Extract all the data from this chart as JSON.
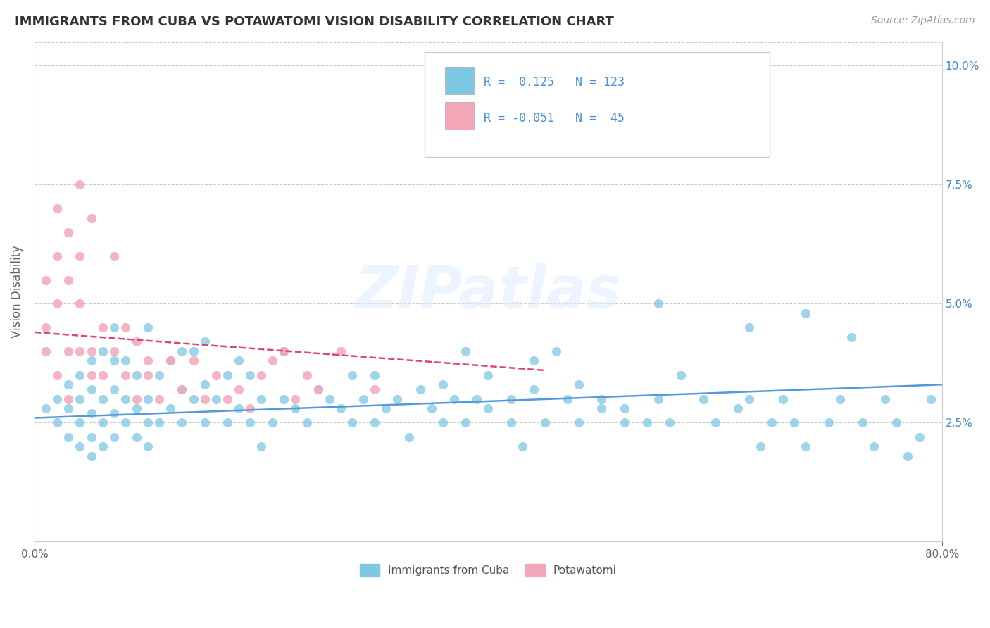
{
  "title": "IMMIGRANTS FROM CUBA VS POTAWATOMI VISION DISABILITY CORRELATION CHART",
  "source": "Source: ZipAtlas.com",
  "ylabel": "Vision Disability",
  "xlim": [
    0.0,
    0.8
  ],
  "ylim": [
    0.0,
    0.105
  ],
  "ytick_vals": [
    0.025,
    0.05,
    0.075,
    0.1
  ],
  "grid_color": "#cccccc",
  "background_color": "#ffffff",
  "watermark": "ZIPatlas",
  "blue_color": "#7ec8e3",
  "pink_color": "#f4a7b9",
  "blue_line_color": "#5599dd",
  "pink_line_color": "#dd4477",
  "title_color": "#333333",
  "axis_color": "#666666",
  "legend_text_color": "#4a90d9",
  "r1": 0.125,
  "n1": 123,
  "r2": -0.051,
  "n2": 45,
  "blue_scatter_x": [
    0.01,
    0.02,
    0.02,
    0.03,
    0.03,
    0.03,
    0.04,
    0.04,
    0.04,
    0.04,
    0.05,
    0.05,
    0.05,
    0.05,
    0.05,
    0.06,
    0.06,
    0.06,
    0.06,
    0.07,
    0.07,
    0.07,
    0.07,
    0.07,
    0.08,
    0.08,
    0.08,
    0.09,
    0.09,
    0.09,
    0.1,
    0.1,
    0.1,
    0.1,
    0.11,
    0.11,
    0.12,
    0.12,
    0.13,
    0.13,
    0.13,
    0.14,
    0.14,
    0.15,
    0.15,
    0.15,
    0.16,
    0.17,
    0.17,
    0.18,
    0.18,
    0.19,
    0.19,
    0.2,
    0.2,
    0.21,
    0.22,
    0.22,
    0.23,
    0.24,
    0.25,
    0.26,
    0.27,
    0.28,
    0.28,
    0.29,
    0.3,
    0.3,
    0.31,
    0.32,
    0.33,
    0.34,
    0.35,
    0.36,
    0.37,
    0.38,
    0.39,
    0.4,
    0.42,
    0.43,
    0.44,
    0.45,
    0.47,
    0.48,
    0.5,
    0.52,
    0.54,
    0.55,
    0.56,
    0.57,
    0.59,
    0.6,
    0.62,
    0.63,
    0.64,
    0.65,
    0.66,
    0.67,
    0.68,
    0.7,
    0.71,
    0.73,
    0.74,
    0.75,
    0.76,
    0.77,
    0.78,
    0.79,
    0.55,
    0.63,
    0.68,
    0.72,
    0.36,
    0.38,
    0.4,
    0.42,
    0.44,
    0.46,
    0.48,
    0.5,
    0.52
  ],
  "blue_scatter_y": [
    0.028,
    0.025,
    0.03,
    0.022,
    0.028,
    0.033,
    0.02,
    0.025,
    0.03,
    0.035,
    0.018,
    0.022,
    0.027,
    0.032,
    0.038,
    0.02,
    0.025,
    0.03,
    0.04,
    0.022,
    0.027,
    0.032,
    0.038,
    0.045,
    0.025,
    0.03,
    0.038,
    0.022,
    0.028,
    0.035,
    0.02,
    0.025,
    0.03,
    0.045,
    0.025,
    0.035,
    0.028,
    0.038,
    0.025,
    0.032,
    0.04,
    0.03,
    0.04,
    0.025,
    0.033,
    0.042,
    0.03,
    0.025,
    0.035,
    0.028,
    0.038,
    0.025,
    0.035,
    0.02,
    0.03,
    0.025,
    0.03,
    0.04,
    0.028,
    0.025,
    0.032,
    0.03,
    0.028,
    0.025,
    0.035,
    0.03,
    0.025,
    0.035,
    0.028,
    0.03,
    0.022,
    0.032,
    0.028,
    0.025,
    0.03,
    0.025,
    0.03,
    0.028,
    0.025,
    0.02,
    0.032,
    0.025,
    0.03,
    0.025,
    0.03,
    0.028,
    0.025,
    0.03,
    0.025,
    0.035,
    0.03,
    0.025,
    0.028,
    0.03,
    0.02,
    0.025,
    0.03,
    0.025,
    0.02,
    0.025,
    0.03,
    0.025,
    0.02,
    0.03,
    0.025,
    0.018,
    0.022,
    0.03,
    0.05,
    0.045,
    0.048,
    0.043,
    0.033,
    0.04,
    0.035,
    0.03,
    0.038,
    0.04,
    0.033,
    0.028,
    0.025
  ],
  "pink_scatter_x": [
    0.01,
    0.01,
    0.01,
    0.02,
    0.02,
    0.02,
    0.02,
    0.03,
    0.03,
    0.03,
    0.03,
    0.04,
    0.04,
    0.04,
    0.04,
    0.05,
    0.05,
    0.05,
    0.06,
    0.06,
    0.07,
    0.07,
    0.08,
    0.08,
    0.09,
    0.09,
    0.1,
    0.1,
    0.11,
    0.12,
    0.13,
    0.14,
    0.15,
    0.16,
    0.17,
    0.18,
    0.19,
    0.2,
    0.21,
    0.22,
    0.23,
    0.24,
    0.25,
    0.27,
    0.3
  ],
  "pink_scatter_y": [
    0.045,
    0.055,
    0.04,
    0.06,
    0.07,
    0.05,
    0.035,
    0.055,
    0.065,
    0.04,
    0.03,
    0.05,
    0.04,
    0.075,
    0.06,
    0.04,
    0.068,
    0.035,
    0.045,
    0.035,
    0.06,
    0.04,
    0.045,
    0.035,
    0.042,
    0.03,
    0.038,
    0.035,
    0.03,
    0.038,
    0.032,
    0.038,
    0.03,
    0.035,
    0.03,
    0.032,
    0.028,
    0.035,
    0.038,
    0.04,
    0.03,
    0.035,
    0.032,
    0.04,
    0.032
  ],
  "blue_trend_x": [
    0.0,
    0.8
  ],
  "blue_trend_y": [
    0.026,
    0.033
  ],
  "pink_trend_x": [
    0.0,
    0.45
  ],
  "pink_trend_y": [
    0.044,
    0.036
  ],
  "legend_blue_label": "Immigrants from Cuba",
  "legend_pink_label": "Potawatomi"
}
